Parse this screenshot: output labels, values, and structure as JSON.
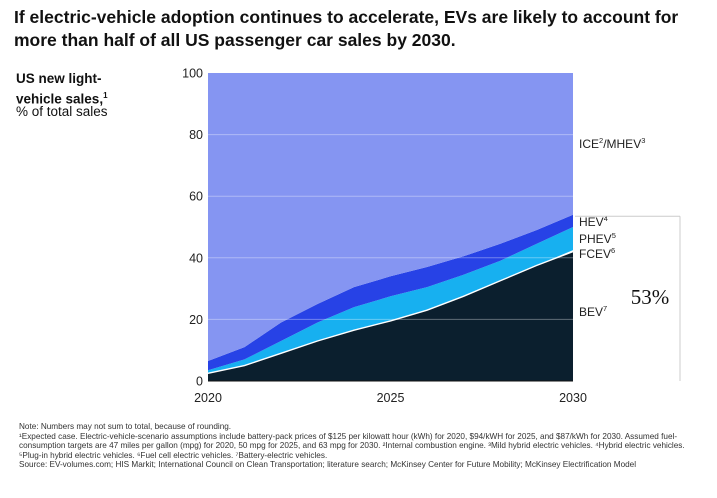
{
  "title": "If electric-vehicle adoption continues to accelerate, EVs are likely to account for more than half of all US passenger car sales by 2030.",
  "chart_data": {
    "type": "area",
    "ylabel_bold": "US new light-vehicle sales,",
    "ylabel_bold_sup": "1",
    "ylabel_unit": "% of total sales",
    "x": [
      2020,
      2021,
      2022,
      2023,
      2024,
      2025,
      2026,
      2027,
      2028,
      2029,
      2030
    ],
    "x_ticks": [
      "2020",
      "2025",
      "2030"
    ],
    "y_ticks": [
      "0",
      "20",
      "40",
      "60",
      "80",
      "100"
    ],
    "ylim": [
      0,
      100
    ],
    "grid": true,
    "stacked": true,
    "series": [
      {
        "name": "BEV",
        "sup": "7",
        "color": "#0b1f2e",
        "values": [
          2.5,
          5,
          9,
          13,
          16.5,
          19.5,
          23,
          27.5,
          32.5,
          37.5,
          42
        ]
      },
      {
        "name": "FCEV",
        "sup": "6",
        "color": "#ffffff",
        "values": [
          0,
          0,
          0,
          0,
          0,
          0,
          0,
          0,
          0,
          0,
          0.5
        ]
      },
      {
        "name": "PHEV",
        "sup": "5",
        "color": "#17b0f0",
        "values": [
          1,
          2,
          4,
          6,
          7.5,
          8,
          7.5,
          7,
          6.5,
          7,
          7.5
        ]
      },
      {
        "name": "HEV",
        "sup": "4",
        "color": "#2742e6",
        "values": [
          3,
          4,
          6,
          6,
          6.5,
          6.5,
          6.5,
          6,
          5.5,
          4.5,
          4
        ]
      },
      {
        "name": "ICE",
        "sup": "2",
        "name_suffix": "/MHEV",
        "sup2": "3",
        "color": "#8595f2",
        "values": [
          93.5,
          89,
          81,
          75,
          69.5,
          66,
          63,
          59.5,
          55.5,
          51,
          46
        ]
      }
    ],
    "annotation": "53%"
  },
  "notes": {
    "note": "Note: Numbers may not sum to total, because of rounding.",
    "footnote1": "¹Expected case. Electric-vehicle-scenario assumptions include battery-pack prices of $125 per kilowatt hour (kWh) for 2020, $94/kWH for 2025, and $87/kWh for 2030. Assumed fuel-consumption targets are 47 miles per gallon (mpg) for 2020, 50 mpg for 2025, and 63 mpg for 2030. ²Internal combustion engine. ³Mild hybrid electric vehicles. ⁴Hybrid electric vehicles. ⁵Plug-in hybrid electric vehicles. ⁶Fuel cell electric vehicles. ⁷Battery-electric vehicles.",
    "source": "Source: EV-volumes.com; HIS Markit; International Council on Clean Transportation; literature search; McKinsey Center for Future Mobility; McKinsey Electrification Model"
  }
}
